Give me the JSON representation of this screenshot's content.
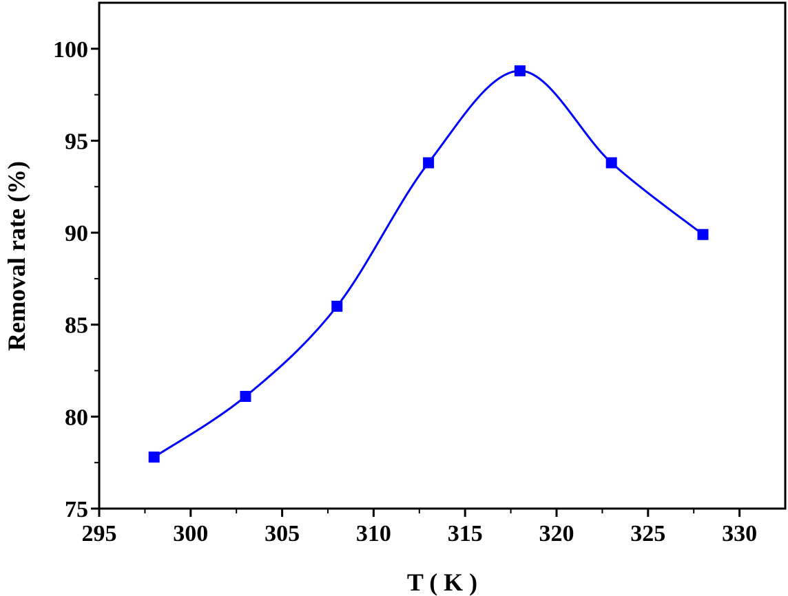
{
  "chart_data": {
    "type": "line",
    "title": "",
    "xlabel": "T ( K )",
    "ylabel": "Removal rate (%)",
    "xlim": [
      295,
      332.5
    ],
    "ylim": [
      75,
      102.5
    ],
    "xticks": [
      295,
      300,
      305,
      310,
      315,
      320,
      325,
      330
    ],
    "yticks": [
      75,
      80,
      85,
      90,
      95,
      100
    ],
    "x_tick_labels": [
      "295",
      "300",
      "305",
      "310",
      "315",
      "320",
      "325",
      "330"
    ],
    "y_tick_labels": [
      "75",
      "80",
      "85",
      "90",
      "95",
      "100"
    ],
    "grid": false,
    "legend": "none",
    "series": [
      {
        "color": "#0000ff",
        "marker": "square",
        "smooth": true,
        "x": [
          298,
          303,
          308,
          313,
          318,
          323,
          328
        ],
        "y": [
          77.8,
          81.1,
          86.0,
          93.8,
          98.8,
          93.8,
          89.9
        ]
      }
    ]
  }
}
